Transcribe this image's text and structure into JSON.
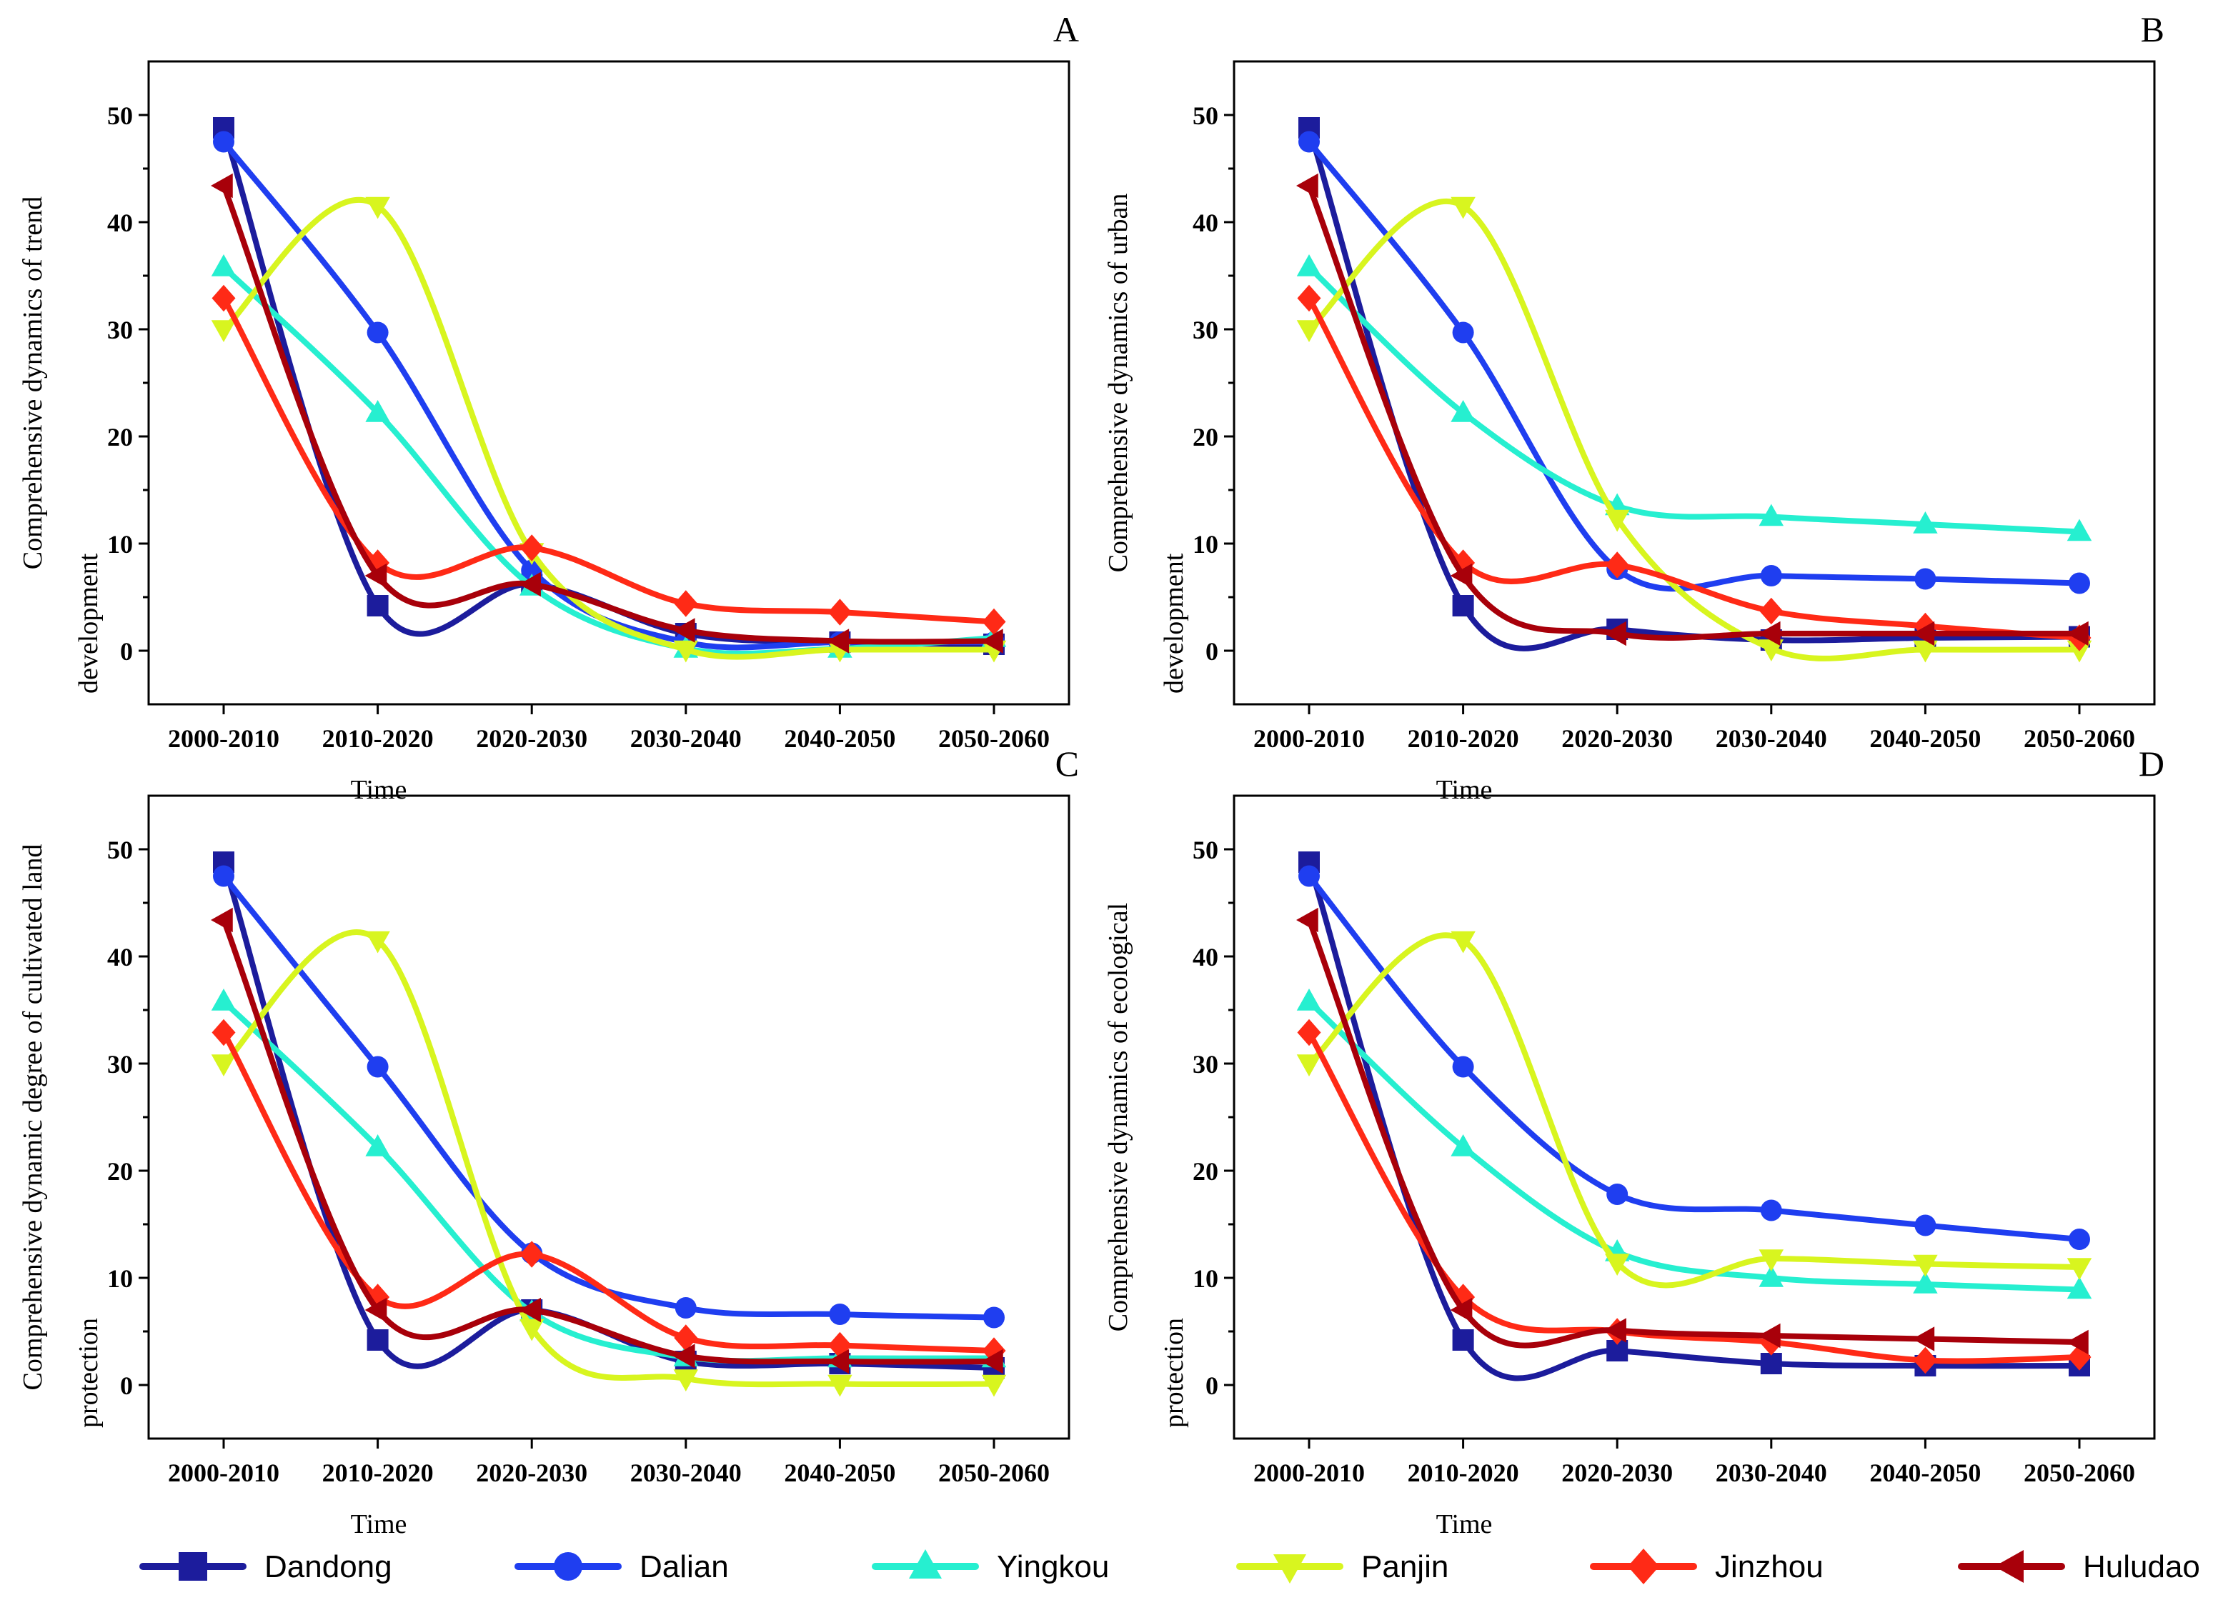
{
  "chart_data": [
    {
      "type": "line",
      "panel": "A",
      "title": "",
      "xlabel": "Time",
      "ylabel_lines": [
        "Comprehensive dynamics of trend",
        "development"
      ],
      "categories": [
        "2000-2010",
        "2010-2020",
        "2020-2030",
        "2030-2040",
        "2040-2050",
        "2050-2060"
      ],
      "yticks": [
        0,
        10,
        20,
        30,
        40,
        50
      ],
      "ylim": [
        -5,
        55
      ],
      "grid": false,
      "series": [
        {
          "name": "Dandong",
          "values": [
            48.8,
            4.2,
            6.2,
            1.6,
            0.8,
            0.6
          ]
        },
        {
          "name": "Dalian",
          "values": [
            47.5,
            29.7,
            7.5,
            0.8,
            0.8,
            0.8
          ]
        },
        {
          "name": "Yingkou",
          "values": [
            35.8,
            22.2,
            6.0,
            0.2,
            0.2,
            1.2
          ]
        },
        {
          "name": "Panjin",
          "values": [
            30.0,
            41.5,
            9.2,
            0.1,
            0.1,
            0.1
          ]
        },
        {
          "name": "Jinzhou",
          "values": [
            32.9,
            8.2,
            9.6,
            4.4,
            3.6,
            2.7
          ]
        },
        {
          "name": "Huludao",
          "values": [
            43.4,
            7.0,
            6.2,
            1.9,
            0.9,
            0.9
          ]
        }
      ]
    },
    {
      "type": "line",
      "panel": "B",
      "title": "",
      "xlabel": "Time",
      "ylabel_lines": [
        "Comprehensive dynamics of urban",
        "development"
      ],
      "categories": [
        "2000-2010",
        "2010-2020",
        "2020-2030",
        "2030-2040",
        "2040-2050",
        "2050-2060"
      ],
      "yticks": [
        0,
        10,
        20,
        30,
        40,
        50
      ],
      "ylim": [
        -5,
        55
      ],
      "grid": false,
      "series": [
        {
          "name": "Dandong",
          "values": [
            48.8,
            4.2,
            2.0,
            1.0,
            1.2,
            1.3
          ]
        },
        {
          "name": "Dalian",
          "values": [
            47.5,
            29.7,
            7.6,
            7.0,
            6.7,
            6.3
          ]
        },
        {
          "name": "Yingkou",
          "values": [
            35.8,
            22.2,
            13.5,
            12.5,
            11.8,
            11.1
          ]
        },
        {
          "name": "Panjin",
          "values": [
            30.0,
            41.5,
            12.3,
            0.2,
            0.1,
            0.1
          ]
        },
        {
          "name": "Jinzhou",
          "values": [
            32.9,
            8.2,
            8.0,
            3.7,
            2.3,
            1.2
          ]
        },
        {
          "name": "Huludao",
          "values": [
            43.4,
            7.0,
            1.6,
            1.6,
            1.6,
            1.6
          ]
        }
      ]
    },
    {
      "type": "line",
      "panel": "C",
      "title": "",
      "xlabel": "Time",
      "ylabel_lines": [
        "Comprehensive dynamic degree of cultivated land",
        "protection"
      ],
      "categories": [
        "2000-2010",
        "2010-2020",
        "2020-2030",
        "2030-2040",
        "2040-2050",
        "2050-2060"
      ],
      "yticks": [
        0,
        10,
        20,
        30,
        40,
        50
      ],
      "ylim": [
        -5,
        55
      ],
      "grid": false,
      "series": [
        {
          "name": "Dandong",
          "values": [
            48.8,
            4.2,
            7.0,
            2.2,
            2.0,
            1.6
          ]
        },
        {
          "name": "Dalian",
          "values": [
            47.5,
            29.7,
            12.3,
            7.2,
            6.6,
            6.3
          ]
        },
        {
          "name": "Yingkou",
          "values": [
            35.8,
            22.2,
            6.8,
            2.6,
            2.5,
            2.5
          ]
        },
        {
          "name": "Panjin",
          "values": [
            30.0,
            41.5,
            5.3,
            0.6,
            0.1,
            0.1
          ]
        },
        {
          "name": "Jinzhou",
          "values": [
            32.9,
            8.2,
            12.2,
            4.4,
            3.7,
            3.2
          ]
        },
        {
          "name": "Huludao",
          "values": [
            43.4,
            7.0,
            7.0,
            2.7,
            2.2,
            2.2
          ]
        }
      ]
    },
    {
      "type": "line",
      "panel": "D",
      "title": "",
      "xlabel": "Time",
      "ylabel_lines": [
        "Comprehensive dynamics of ecological",
        "protection"
      ],
      "categories": [
        "2000-2010",
        "2010-2020",
        "2020-2030",
        "2030-2040",
        "2040-2050",
        "2050-2060"
      ],
      "yticks": [
        0,
        10,
        20,
        30,
        40,
        50
      ],
      "ylim": [
        -5,
        55
      ],
      "grid": false,
      "series": [
        {
          "name": "Dandong",
          "values": [
            48.8,
            4.2,
            3.2,
            2.0,
            1.8,
            1.8
          ]
        },
        {
          "name": "Dalian",
          "values": [
            47.5,
            29.7,
            17.8,
            16.3,
            14.9,
            13.6
          ]
        },
        {
          "name": "Yingkou",
          "values": [
            35.8,
            22.2,
            12.4,
            10.0,
            9.4,
            8.9
          ]
        },
        {
          "name": "Panjin",
          "values": [
            30.0,
            41.5,
            11.4,
            11.8,
            11.3,
            11.0
          ]
        },
        {
          "name": "Jinzhou",
          "values": [
            32.9,
            8.2,
            5.0,
            4.0,
            2.3,
            2.6
          ]
        },
        {
          "name": "Huludao",
          "values": [
            43.4,
            7.0,
            5.1,
            4.6,
            4.3,
            4.0
          ]
        }
      ]
    }
  ],
  "legend": [
    {
      "name": "Dandong",
      "color": "#1c1c9c",
      "marker": "square"
    },
    {
      "name": "Dalian",
      "color": "#1f3ef0",
      "marker": "circle"
    },
    {
      "name": "Yingkou",
      "color": "#26efd0",
      "marker": "triangle-up"
    },
    {
      "name": "Panjin",
      "color": "#d8f51f",
      "marker": "triangle-down"
    },
    {
      "name": "Jinzhou",
      "color": "#ff2a16",
      "marker": "diamond"
    },
    {
      "name": "Huludao",
      "color": "#a8000a",
      "marker": "triangle-left"
    }
  ]
}
